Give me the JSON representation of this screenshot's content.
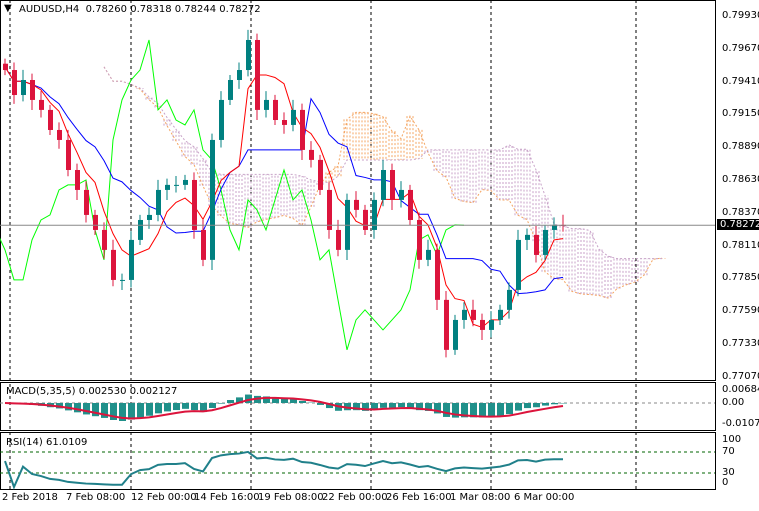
{
  "header": {
    "symbol": "AUDUSD,H4",
    "open": "0.78260",
    "high": "0.78318",
    "low": "0.78244",
    "close": "0.78272"
  },
  "macd": {
    "label": "MACD(5,35,5)",
    "main": "0.002530",
    "signal": "0.002127",
    "scale": [
      "0.006842",
      "0.00",
      "-0.010711"
    ]
  },
  "rsi": {
    "label": "RSI(14)",
    "value": "61.0109",
    "scale": [
      "100",
      "70",
      "30",
      "0"
    ]
  },
  "chart_data": {
    "type": "candlestick",
    "price_ticks": [
      "0.79930",
      "0.79670",
      "0.79410",
      "0.79150",
      "0.78890",
      "0.78630",
      "0.78370",
      "0.78110",
      "0.77850",
      "0.77590",
      "0.77330",
      "0.77070"
    ],
    "ylim": [
      0.7707,
      0.7993
    ],
    "current_price": "0.78272",
    "time_ticks": [
      "2 Feb 2018",
      "7 Feb 08:00",
      "12 Feb 00:00",
      "14 Feb 16:00",
      "19 Feb 08:00",
      "22 Feb 00:00",
      "26 Feb 16:00",
      "1 Mar 08:00",
      "6 Mar 00:00"
    ],
    "closes": [
      0.79502,
      0.79304,
      0.79423,
      0.79265,
      0.79186,
      0.79027,
      0.78948,
      0.7871,
      0.78552,
      0.78354,
      0.78235,
      0.78077,
      0.77839,
      0.77839,
      0.78156,
      0.78314,
      0.78354,
      0.78552,
      0.78592,
      0.78592,
      0.78631,
      0.78235,
      0.77998,
      0.78948,
      0.79265,
      0.79423,
      0.79502,
      0.7974,
      0.79186,
      0.79265,
      0.79106,
      0.79067,
      0.79186,
      0.78869,
      0.7879,
      0.78552,
      0.78235,
      0.78077,
      0.78473,
      0.78394,
      0.78235,
      0.78473,
      0.7871,
      0.78473,
      0.78552,
      0.78314,
      0.77998,
      0.78077,
      0.77681,
      0.77285,
      0.77522,
      0.77602,
      0.77522,
      0.77443,
      0.77522,
      0.77602,
      0.7776,
      0.78156,
      0.78196,
      0.78037,
      0.78235,
      0.78275,
      0.78272
    ],
    "colors": {
      "bull": "#008080",
      "bear": "#dc143c",
      "tenkan": "#ff0000",
      "kijun": "#0000ff",
      "chikou": "#00ff00",
      "cloud_a": "#f4a460",
      "cloud_b": "#c8a2c8",
      "macd_hist": "#20908a",
      "macd_signal": "#dc143c",
      "rsi": "#20808a"
    }
  }
}
